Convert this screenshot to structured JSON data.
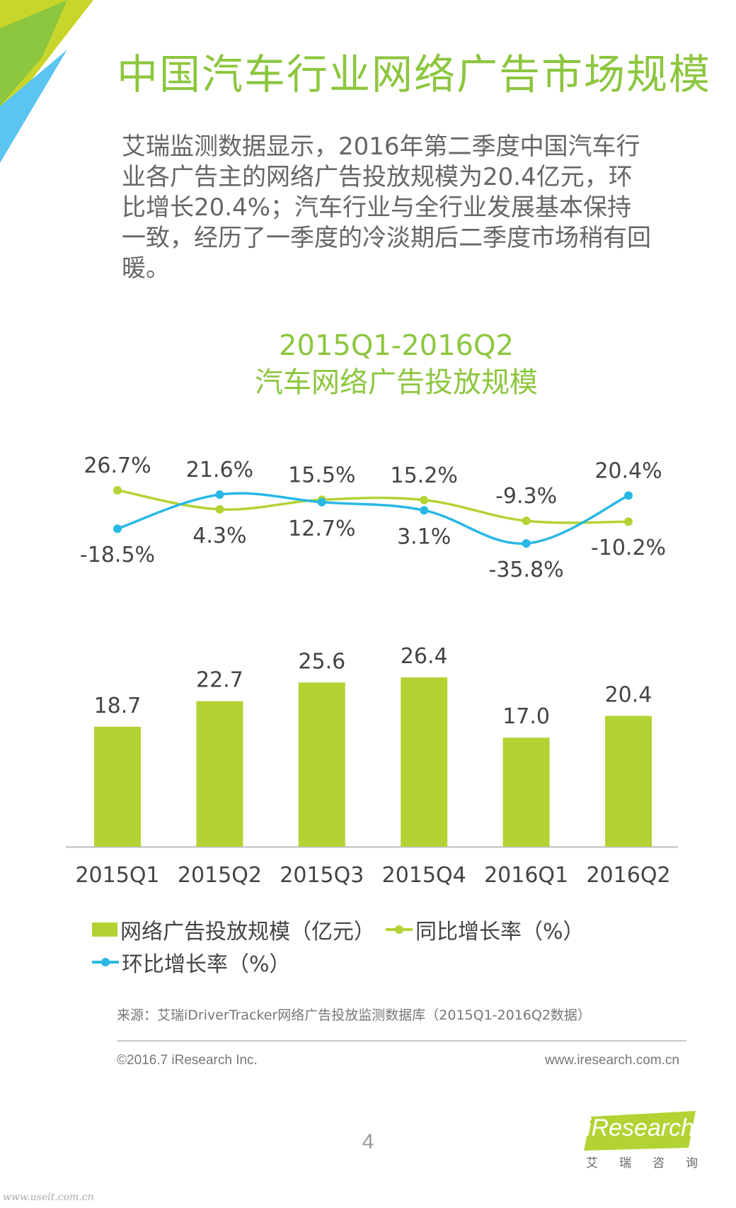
{
  "page": {
    "title": "中国汽车行业网络广告市场规模",
    "intro": "艾瑞监测数据显示，2016年第二季度中国汽车行业各广告主的网络广告投放规模为20.4亿元，环比增长20.4%；汽车行业与全行业发展基本保持一致，经历了一季度的冷淡期后二季度市场稍有回暖。",
    "source": "来源：艾瑞iDriverTracker网络广告投放监测数据库（2015Q1-2016Q2数据）",
    "copyright": "©2016.7 iResearch Inc.",
    "website": "www.iresearch.com.cn",
    "page_number": "4",
    "logo_text": "iResearch",
    "logo_subtext": "艾瑞咨询",
    "watermark": "www.useit.com.cn"
  },
  "colors": {
    "accent_green": "#8dc63f",
    "bar_green": "#b3d334",
    "yoy_line": "#b3d334",
    "qoq_line": "#29b8e5",
    "corner_blue": "#5bc4f1",
    "corner_green": "#8dc63f",
    "corner_yellow": "#c8d62b"
  },
  "chart_data": {
    "type": "bar",
    "title_line1": "2015Q1-2016Q2",
    "title_line2": "汽车网络广告投放规模",
    "categories": [
      "2015Q1",
      "2015Q2",
      "2015Q3",
      "2015Q4",
      "2016Q1",
      "2016Q2"
    ],
    "series": [
      {
        "name": "网络广告投放规模（亿元）",
        "type": "bar",
        "values": [
          18.7,
          22.7,
          25.6,
          26.4,
          17.0,
          20.4
        ],
        "labels": [
          "18.7",
          "22.7",
          "25.6",
          "26.4",
          "17.0",
          "20.4"
        ]
      },
      {
        "name": "同比增长率（%）",
        "type": "line",
        "values": [
          26.7,
          4.3,
          15.5,
          15.2,
          -9.3,
          -10.2
        ],
        "labels": [
          "26.7%",
          "4.3%",
          "15.5%",
          "15.2%",
          "-9.3%",
          "-10.2%"
        ]
      },
      {
        "name": "环比增长率（%）",
        "type": "line",
        "values": [
          -18.5,
          21.6,
          12.7,
          3.1,
          -35.8,
          20.4
        ],
        "labels": [
          "-18.5%",
          "21.6%",
          "12.7%",
          "3.1%",
          "-35.8%",
          "20.4%"
        ]
      }
    ],
    "legend_position": "bottom-left",
    "grid": false
  }
}
